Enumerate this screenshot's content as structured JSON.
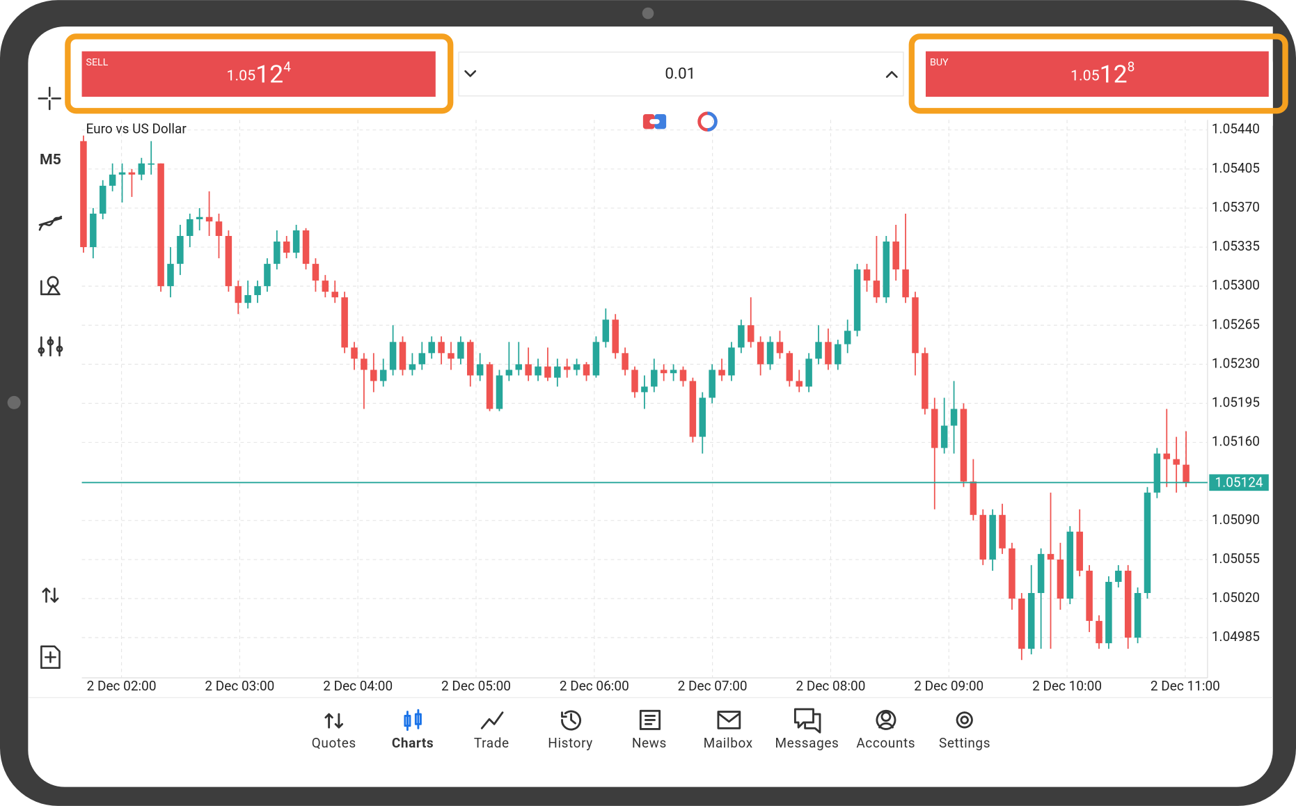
{
  "trade_bar": {
    "sell": {
      "label": "SELL",
      "price_main": "1.05",
      "price_big": "12",
      "price_sup": "4"
    },
    "buy": {
      "label": "BUY",
      "price_main": "1.05",
      "price_big": "12",
      "price_sup": "8"
    },
    "lot": "0.01"
  },
  "toolbar": {
    "timeframe": "M5"
  },
  "nav": {
    "items": [
      {
        "label": "Quotes"
      },
      {
        "label": "Charts",
        "active": true
      },
      {
        "label": "Trade"
      },
      {
        "label": "History"
      },
      {
        "label": "News"
      },
      {
        "label": "Mailbox"
      },
      {
        "label": "Messages"
      },
      {
        "label": "Accounts"
      },
      {
        "label": "Settings"
      }
    ]
  },
  "chart_data": {
    "type": "candlestick",
    "title": "Euro vs US Dollar",
    "up_color": "#26a69a",
    "down_color": "#ef5350",
    "grid": true,
    "last_price": 1.05124,
    "ylim": [
      1.04949,
      1.05449
    ],
    "yticks": [
      {
        "value": 1.0544,
        "label": "1.05440"
      },
      1.05405,
      {
        "value": 1.0537,
        "label": "1.05370"
      },
      1.05335,
      {
        "value": 1.053,
        "label": "1.05300"
      },
      1.05265,
      {
        "value": 1.0523,
        "label": "1.05230"
      },
      1.05195,
      {
        "value": 1.0516,
        "label": "1.05160"
      },
      {
        "value": 1.0509,
        "label": "1.05090"
      },
      1.05055,
      {
        "value": 1.0502,
        "label": "1.05020"
      },
      1.04985
    ],
    "xticks": [
      "2 Dec 02:00",
      "2 Dec 03:00",
      "2 Dec 04:00",
      "2 Dec 05:00",
      "2 Dec 06:00",
      "2 Dec 07:00",
      "2 Dec 08:00",
      "2 Dec 09:00",
      "2 Dec 10:00",
      "2 Dec 11:00"
    ],
    "candles": [
      [
        1.0543,
        1.05435,
        1.0533,
        1.05335
      ],
      [
        1.05335,
        1.0537,
        1.05325,
        1.05365
      ],
      [
        1.05365,
        1.05395,
        1.0536,
        1.0539
      ],
      [
        1.0539,
        1.0541,
        1.05385,
        1.054
      ],
      [
        1.054,
        1.0541,
        1.05375,
        1.05402
      ],
      [
        1.05402,
        1.05405,
        1.0538,
        1.054
      ],
      [
        1.054,
        1.05415,
        1.05395,
        1.0541
      ],
      [
        1.0541,
        1.0543,
        1.054,
        1.0541
      ],
      [
        1.0541,
        1.0541,
        1.05295,
        1.053
      ],
      [
        1.053,
        1.05335,
        1.0529,
        1.0532
      ],
      [
        1.0532,
        1.05355,
        1.0531,
        1.05345
      ],
      [
        1.05345,
        1.05365,
        1.05335,
        1.0536
      ],
      [
        1.0536,
        1.0537,
        1.0535,
        1.05362
      ],
      [
        1.05362,
        1.05385,
        1.05345,
        1.05358
      ],
      [
        1.05358,
        1.05365,
        1.05325,
        1.05345
      ],
      [
        1.05345,
        1.0535,
        1.05295,
        1.053
      ],
      [
        1.053,
        1.05305,
        1.05275,
        1.05285
      ],
      [
        1.05285,
        1.05305,
        1.0528,
        1.05292
      ],
      [
        1.05292,
        1.05305,
        1.05285,
        1.053
      ],
      [
        1.053,
        1.05325,
        1.05295,
        1.0532
      ],
      [
        1.0532,
        1.0535,
        1.05315,
        1.0534
      ],
      [
        1.0534,
        1.05345,
        1.05325,
        1.0533
      ],
      [
        1.0533,
        1.05355,
        1.05325,
        1.0535
      ],
      [
        1.0535,
        1.05352,
        1.05315,
        1.0532
      ],
      [
        1.0532,
        1.05325,
        1.05295,
        1.05305
      ],
      [
        1.05305,
        1.0531,
        1.0529,
        1.05295
      ],
      [
        1.05295,
        1.05305,
        1.05285,
        1.0529
      ],
      [
        1.0529,
        1.05295,
        1.0524,
        1.05245
      ],
      [
        1.05245,
        1.0525,
        1.05225,
        1.05235
      ],
      [
        1.05235,
        1.0524,
        1.0519,
        1.05225
      ],
      [
        1.05225,
        1.0524,
        1.05205,
        1.05215
      ],
      [
        1.05215,
        1.05235,
        1.0521,
        1.05225
      ],
      [
        1.05225,
        1.05265,
        1.0522,
        1.0525
      ],
      [
        1.0525,
        1.05255,
        1.0522,
        1.05225
      ],
      [
        1.05225,
        1.0524,
        1.0522,
        1.0523
      ],
      [
        1.0523,
        1.0525,
        1.05225,
        1.0524
      ],
      [
        1.0524,
        1.05255,
        1.05235,
        1.0525
      ],
      [
        1.0525,
        1.05255,
        1.0523,
        1.0524
      ],
      [
        1.0524,
        1.0525,
        1.05225,
        1.05235
      ],
      [
        1.05235,
        1.05255,
        1.0523,
        1.0525
      ],
      [
        1.0525,
        1.05252,
        1.0521,
        1.0522
      ],
      [
        1.0522,
        1.0524,
        1.05215,
        1.0523
      ],
      [
        1.0523,
        1.05232,
        1.05188,
        1.0519
      ],
      [
        1.0519,
        1.05225,
        1.05188,
        1.0522
      ],
      [
        1.0522,
        1.0525,
        1.05215,
        1.05225
      ],
      [
        1.05225,
        1.0525,
        1.0522,
        1.0523
      ],
      [
        1.0523,
        1.05245,
        1.05215,
        1.0522
      ],
      [
        1.0522,
        1.05235,
        1.05215,
        1.05228
      ],
      [
        1.05228,
        1.05245,
        1.05215,
        1.05218
      ],
      [
        1.05218,
        1.05235,
        1.0521,
        1.05228
      ],
      [
        1.05228,
        1.05235,
        1.05218,
        1.05225
      ],
      [
        1.05225,
        1.05235,
        1.0522,
        1.0523
      ],
      [
        1.0523,
        1.05232,
        1.05215,
        1.0522
      ],
      [
        1.0522,
        1.05255,
        1.05218,
        1.0525
      ],
      [
        1.0525,
        1.0528,
        1.05245,
        1.0527
      ],
      [
        1.0527,
        1.05275,
        1.05235,
        1.0524
      ],
      [
        1.0524,
        1.05245,
        1.0522,
        1.05225
      ],
      [
        1.05225,
        1.05228,
        1.052,
        1.05205
      ],
      [
        1.05205,
        1.0522,
        1.0519,
        1.0521
      ],
      [
        1.0521,
        1.05235,
        1.05205,
        1.05225
      ],
      [
        1.05225,
        1.0523,
        1.05215,
        1.05222
      ],
      [
        1.05222,
        1.0523,
        1.05215,
        1.05225
      ],
      [
        1.05225,
        1.05228,
        1.0521,
        1.05215
      ],
      [
        1.05215,
        1.05218,
        1.0516,
        1.05165
      ],
      [
        1.05165,
        1.05205,
        1.0515,
        1.052
      ],
      [
        1.052,
        1.0523,
        1.05195,
        1.05225
      ],
      [
        1.05225,
        1.05235,
        1.05215,
        1.0522
      ],
      [
        1.0522,
        1.0525,
        1.05215,
        1.05245
      ],
      [
        1.05245,
        1.0527,
        1.0524,
        1.05265
      ],
      [
        1.05265,
        1.0529,
        1.05245,
        1.0525
      ],
      [
        1.0525,
        1.05255,
        1.0522,
        1.0523
      ],
      [
        1.0523,
        1.05255,
        1.05225,
        1.0525
      ],
      [
        1.0525,
        1.0526,
        1.05235,
        1.0524
      ],
      [
        1.0524,
        1.05242,
        1.0521,
        1.05215
      ],
      [
        1.05215,
        1.05225,
        1.05205,
        1.0521
      ],
      [
        1.0521,
        1.0524,
        1.05205,
        1.05235
      ],
      [
        1.05235,
        1.05265,
        1.0523,
        1.0525
      ],
      [
        1.0525,
        1.05262,
        1.05225,
        1.0523
      ],
      [
        1.0523,
        1.05252,
        1.05225,
        1.05248
      ],
      [
        1.05248,
        1.0527,
        1.0524,
        1.0526
      ],
      [
        1.0526,
        1.0532,
        1.05255,
        1.05315
      ],
      [
        1.05315,
        1.0532,
        1.05295,
        1.05305
      ],
      [
        1.05305,
        1.05345,
        1.05285,
        1.0529
      ],
      [
        1.0529,
        1.05345,
        1.05285,
        1.0534
      ],
      [
        1.0534,
        1.05355,
        1.05305,
        1.05315
      ],
      [
        1.05315,
        1.05365,
        1.05285,
        1.0529
      ],
      [
        1.0529,
        1.05295,
        1.0522,
        1.0524
      ],
      [
        1.0524,
        1.05245,
        1.05185,
        1.0519
      ],
      [
        1.0519,
        1.052,
        1.051,
        1.05155
      ],
      [
        1.05155,
        1.052,
        1.0515,
        1.05175
      ],
      [
        1.05175,
        1.05215,
        1.0515,
        1.0519
      ],
      [
        1.0519,
        1.05195,
        1.0512,
        1.05125
      ],
      [
        1.05125,
        1.05145,
        1.0509,
        1.05095
      ],
      [
        1.05095,
        1.051,
        1.0505,
        1.05055
      ],
      [
        1.05055,
        1.051,
        1.05045,
        1.05095
      ],
      [
        1.05095,
        1.05105,
        1.0506,
        1.05065
      ],
      [
        1.05065,
        1.0507,
        1.0501,
        1.0502
      ],
      [
        1.0502,
        1.05025,
        1.04965,
        1.04975
      ],
      [
        1.04975,
        1.0505,
        1.0497,
        1.05025
      ],
      [
        1.05025,
        1.05065,
        1.04975,
        1.0506
      ],
      [
        1.0506,
        1.05115,
        1.04975,
        1.05055
      ],
      [
        1.05055,
        1.0507,
        1.0501,
        1.0502
      ],
      [
        1.0502,
        1.05085,
        1.05015,
        1.0508
      ],
      [
        1.0508,
        1.051,
        1.0504,
        1.05045
      ],
      [
        1.05045,
        1.0505,
        1.0499,
        1.05
      ],
      [
        1.05,
        1.05005,
        1.04975,
        1.0498
      ],
      [
        1.0498,
        1.0504,
        1.04975,
        1.05035
      ],
      [
        1.05035,
        1.0505,
        1.0503,
        1.05045
      ],
      [
        1.05045,
        1.0505,
        1.04975,
        1.04985
      ],
      [
        1.04985,
        1.0503,
        1.0498,
        1.05025
      ],
      [
        1.05025,
        1.0512,
        1.0502,
        1.05115
      ],
      [
        1.05115,
        1.05155,
        1.0511,
        1.0515
      ],
      [
        1.0515,
        1.0519,
        1.0512,
        1.05145
      ],
      [
        1.05145,
        1.05165,
        1.05115,
        1.0514
      ],
      [
        1.0514,
        1.0517,
        1.0512,
        1.05124
      ]
    ]
  }
}
